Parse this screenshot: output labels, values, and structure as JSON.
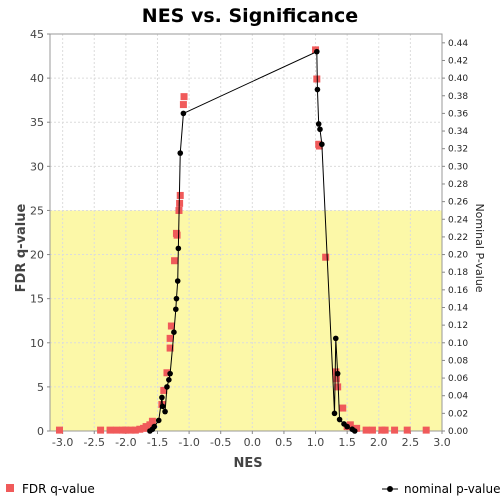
{
  "chart_data": {
    "type": "scatter",
    "title": "NES vs. Significance",
    "xlabel": "NES",
    "ylabel_left": "FDR q-value",
    "ylabel_right": "Nominal P-value",
    "xlim": [
      -3.2,
      3.0
    ],
    "ylim_left": [
      0,
      45
    ],
    "ylim_right": [
      0,
      0.45
    ],
    "x_ticks": [
      "-3.0",
      "-2.5",
      "-2.0",
      "-1.5",
      "-1.0",
      "-0.5",
      "0.0",
      "0.5",
      "1.0",
      "1.5",
      "2.0",
      "2.5",
      "3.0"
    ],
    "y_ticks_left": [
      "0",
      "5",
      "10",
      "15",
      "20",
      "25",
      "30",
      "35",
      "40",
      "45"
    ],
    "y_ticks_right": [
      "0.00",
      "0.02",
      "0.04",
      "0.06",
      "0.08",
      "0.10",
      "0.12",
      "0.14",
      "0.16",
      "0.18",
      "0.20",
      "0.22",
      "0.24",
      "0.26",
      "0.28",
      "0.30",
      "0.32",
      "0.34",
      "0.36",
      "0.38",
      "0.40",
      "0.42",
      "0.44"
    ],
    "highlight_band_left": [
      0,
      25
    ],
    "highlight_color": "#fcf8a8",
    "grid": true,
    "legend_position": "bottom",
    "series": [
      {
        "name": "FDR q-value",
        "axis": "left",
        "marker": "square",
        "color": "#f05a5a",
        "points": [
          [
            -3.05,
            0.1
          ],
          [
            -2.4,
            0.1
          ],
          [
            -2.25,
            0.1
          ],
          [
            -2.15,
            0.1
          ],
          [
            -2.05,
            0.1
          ],
          [
            -2.0,
            0.1
          ],
          [
            -1.92,
            0.1
          ],
          [
            -1.85,
            0.1
          ],
          [
            -1.78,
            0.2
          ],
          [
            -1.72,
            0.3
          ],
          [
            -1.68,
            0.5
          ],
          [
            -1.62,
            0.7
          ],
          [
            -1.58,
            1.1
          ],
          [
            -1.43,
            3.0
          ],
          [
            -1.4,
            4.6
          ],
          [
            -1.35,
            6.6
          ],
          [
            -1.3,
            9.4
          ],
          [
            -1.3,
            10.5
          ],
          [
            -1.28,
            11.9
          ],
          [
            -1.23,
            19.3
          ],
          [
            -1.2,
            22.4
          ],
          [
            -1.19,
            22.2
          ],
          [
            -1.16,
            25.0
          ],
          [
            -1.15,
            25.8
          ],
          [
            -1.14,
            26.7
          ],
          [
            -1.09,
            37.0
          ],
          [
            -1.08,
            37.9
          ],
          [
            1.0,
            43.2
          ],
          [
            1.02,
            39.9
          ],
          [
            1.05,
            32.5
          ],
          [
            1.06,
            32.3
          ],
          [
            1.16,
            19.7
          ],
          [
            1.32,
            6.7
          ],
          [
            1.33,
            5.9
          ],
          [
            1.35,
            5.0
          ],
          [
            1.43,
            2.6
          ],
          [
            1.5,
            0.5
          ],
          [
            1.55,
            0.7
          ],
          [
            1.65,
            0.3
          ],
          [
            1.8,
            0.1
          ],
          [
            1.9,
            0.1
          ],
          [
            2.05,
            0.1
          ],
          [
            2.1,
            0.1
          ],
          [
            2.25,
            0.1
          ],
          [
            2.45,
            0.1
          ],
          [
            2.75,
            0.1
          ]
        ]
      },
      {
        "name": "nominal p-value",
        "axis": "right",
        "marker": "circle-line",
        "color": "#000000",
        "points": [
          [
            -1.62,
            0.0
          ],
          [
            -1.58,
            0.002
          ],
          [
            -1.55,
            0.005
          ],
          [
            -1.48,
            0.012
          ],
          [
            -1.43,
            0.038
          ],
          [
            -1.42,
            0.028
          ],
          [
            -1.38,
            0.022
          ],
          [
            -1.35,
            0.05
          ],
          [
            -1.32,
            0.058
          ],
          [
            -1.3,
            0.065
          ],
          [
            -1.24,
            0.112
          ],
          [
            -1.21,
            0.138
          ],
          [
            -1.2,
            0.15
          ],
          [
            -1.18,
            0.17
          ],
          [
            -1.17,
            0.207
          ],
          [
            -1.14,
            0.315
          ],
          [
            -1.09,
            0.36
          ],
          [
            1.02,
            0.43
          ],
          [
            1.03,
            0.387
          ],
          [
            1.05,
            0.348
          ],
          [
            1.07,
            0.342
          ],
          [
            1.1,
            0.325
          ],
          [
            1.3,
            0.02
          ],
          [
            1.32,
            0.105
          ],
          [
            1.35,
            0.065
          ],
          [
            1.38,
            0.013
          ],
          [
            1.45,
            0.008
          ],
          [
            1.5,
            0.005
          ],
          [
            1.58,
            0.002
          ],
          [
            1.62,
            0.0
          ]
        ]
      }
    ]
  }
}
